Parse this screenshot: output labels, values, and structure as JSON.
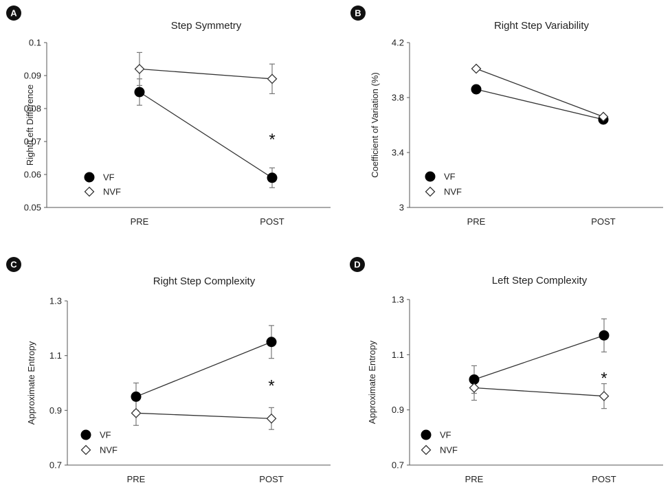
{
  "chart_data": [
    {
      "panel_label": "A",
      "type": "line",
      "title": "Step Symmetry",
      "ylabel": "Right/Left Difference",
      "categories": [
        "PRE",
        "POST"
      ],
      "ylim": [
        0.05,
        0.1
      ],
      "yticks": [
        0.05,
        0.06,
        0.07,
        0.08,
        0.09,
        0.1
      ],
      "ytick_labels": [
        "0.05",
        "0.06",
        "0.07",
        "0.08",
        "0.09",
        "0.1"
      ],
      "series": [
        {
          "name": "VF",
          "marker": "filled-circle",
          "values": [
            0.085,
            0.059
          ],
          "errors": [
            0.004,
            0.003
          ]
        },
        {
          "name": "NVF",
          "marker": "open-diamond",
          "values": [
            0.092,
            0.089
          ],
          "errors": [
            0.005,
            0.0045
          ]
        }
      ],
      "annotations": [
        {
          "text": "*",
          "category": "POST",
          "y": 0.0715
        }
      ],
      "legend": "bottom-left",
      "grid": false
    },
    {
      "panel_label": "B",
      "type": "line",
      "title": "Right Step Variability",
      "ylabel": "Coefficient of Variation (%)",
      "categories": [
        "PRE",
        "POST"
      ],
      "ylim": [
        3,
        4.2
      ],
      "yticks": [
        3,
        3.4,
        3.8,
        4.2
      ],
      "ytick_labels": [
        "3",
        "3.4",
        "3.8",
        "4.2"
      ],
      "series": [
        {
          "name": "VF",
          "marker": "filled-circle",
          "values": [
            3.86,
            3.64
          ],
          "errors": [
            0,
            0
          ]
        },
        {
          "name": "NVF",
          "marker": "open-diamond",
          "values": [
            4.01,
            3.66
          ],
          "errors": [
            0,
            0
          ]
        }
      ],
      "annotations": [],
      "legend": "bottom-left",
      "grid": false
    },
    {
      "panel_label": "C",
      "type": "line",
      "title": "Right Step Complexity",
      "ylabel": "Approximate Entropy",
      "categories": [
        "PRE",
        "POST"
      ],
      "ylim": [
        0.7,
        1.3
      ],
      "yticks": [
        0.7,
        0.9,
        1.1,
        1.3
      ],
      "ytick_labels": [
        "0.7",
        "0.9",
        "1.1",
        "1.3"
      ],
      "series": [
        {
          "name": "VF",
          "marker": "filled-circle",
          "values": [
            0.95,
            1.15
          ],
          "errors": [
            0.05,
            0.06
          ]
        },
        {
          "name": "NVF",
          "marker": "open-diamond",
          "values": [
            0.89,
            0.87
          ],
          "errors": [
            0.045,
            0.04
          ]
        }
      ],
      "annotations": [
        {
          "text": "*",
          "category": "POST",
          "y": 1.0
        }
      ],
      "legend": "bottom-left",
      "grid": false
    },
    {
      "panel_label": "D",
      "type": "line",
      "title": "Left Step Complexity",
      "ylabel": "Approximate Entropy",
      "categories": [
        "PRE",
        "POST"
      ],
      "ylim": [
        0.7,
        1.3
      ],
      "yticks": [
        0.7,
        0.9,
        1.1,
        1.3
      ],
      "ytick_labels": [
        "0.7",
        "0.9",
        "1.1",
        "1.3"
      ],
      "series": [
        {
          "name": "VF",
          "marker": "filled-circle",
          "values": [
            1.01,
            1.17
          ],
          "errors": [
            0.05,
            0.06
          ]
        },
        {
          "name": "NVF",
          "marker": "open-diamond",
          "values": [
            0.98,
            0.95
          ],
          "errors": [
            0.045,
            0.045
          ]
        }
      ],
      "annotations": [
        {
          "text": "*",
          "category": "POST",
          "y": 1.025
        }
      ],
      "legend": "bottom-left",
      "grid": false
    }
  ]
}
